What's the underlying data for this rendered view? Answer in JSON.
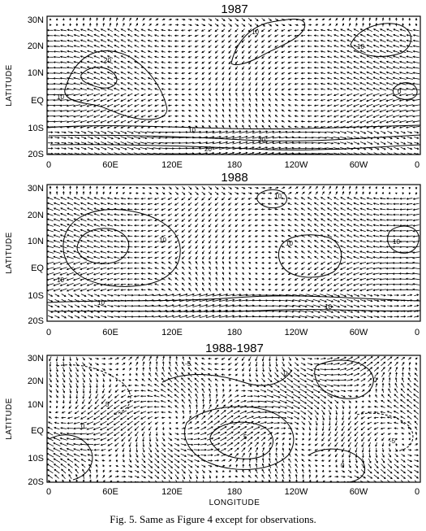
{
  "figure": {
    "caption": "Fig. 5. Same as Figure 4 except for observations.",
    "panels": [
      {
        "title": "1987",
        "ylabel": "LATITUDE",
        "yticks": [
          "30N",
          "20N",
          "10N",
          "EQ",
          "10S",
          "20S"
        ],
        "xticks": [
          "0",
          "60E",
          "120E",
          "180",
          "120W",
          "60W",
          "0"
        ],
        "xlabel": "",
        "contour_labels": [
          "20",
          "10",
          "10",
          "20",
          "10",
          "10",
          "20",
          "0"
        ]
      },
      {
        "title": "1988",
        "ylabel": "LATITUDE",
        "yticks": [
          "30N",
          "20N",
          "10N",
          "EQ",
          "10S",
          "20S"
        ],
        "xticks": [
          "0",
          "60E",
          "120E",
          "180",
          "120W",
          "60W",
          "0"
        ],
        "xlabel": "",
        "contour_labels": [
          "10",
          "10",
          "10",
          "10",
          "10",
          "10",
          "10"
        ]
      },
      {
        "title": "1988-1987",
        "ylabel": "LATITUDE",
        "yticks": [
          "30N",
          "20N",
          "10N",
          "EQ",
          "10S",
          "20S"
        ],
        "xticks": [
          "0",
          "60E",
          "120E",
          "180",
          "120W",
          "60W",
          "0"
        ],
        "xlabel": "LONGITUDE",
        "contour_labels": [
          "-5",
          "0",
          "5",
          "0",
          "0",
          "5",
          "0",
          "-5"
        ]
      }
    ]
  }
}
